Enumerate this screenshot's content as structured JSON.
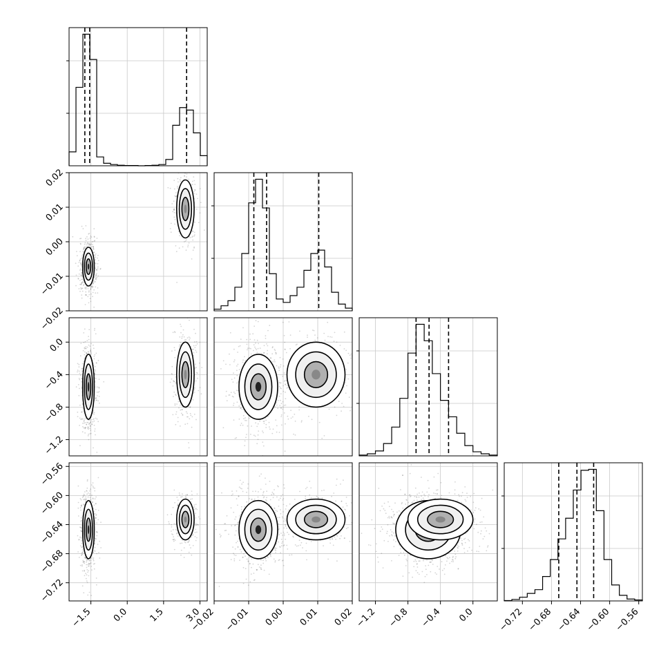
{
  "chart_data": {
    "type": "corner",
    "title": "",
    "parameters": [
      {
        "index": 0,
        "range": [
          -2.4,
          3.3
        ],
        "ticks": [
          -1.5,
          0.0,
          1.5,
          3.0
        ],
        "tick_labels": [
          "−1.5",
          "0.0",
          "1.5",
          "3.0"
        ],
        "quantiles": [
          -1.75,
          -1.55,
          2.45
        ],
        "show_xticks": true,
        "show_yticks": false
      },
      {
        "index": 1,
        "range": [
          -0.02,
          0.02
        ],
        "ticks": [
          -0.02,
          -0.01,
          0.0,
          0.01,
          0.02
        ],
        "tick_labels": [
          "−0.02",
          "−0.01",
          "0.00",
          "0.01",
          "0.02"
        ],
        "quantiles": [
          -0.0085,
          -0.0048,
          0.0103
        ],
        "show_xticks": true,
        "show_yticks": true
      },
      {
        "index": 2,
        "range": [
          -1.4,
          0.3
        ],
        "ticks": [
          -1.2,
          -0.8,
          -0.4,
          0.0
        ],
        "tick_labels": [
          "−1.2",
          "−0.8",
          "−0.4",
          "0.0"
        ],
        "quantiles": [
          -0.7,
          -0.54,
          -0.3
        ],
        "show_xticks": true,
        "show_yticks": true
      },
      {
        "index": 3,
        "range": [
          -0.745,
          -0.555
        ],
        "ticks": [
          -0.72,
          -0.68,
          -0.64,
          -0.6,
          -0.56
        ],
        "tick_labels": [
          "−0.72",
          "−0.68",
          "−0.64",
          "−0.60",
          "−0.56"
        ],
        "quantiles": [
          -0.67,
          -0.645,
          -0.622
        ],
        "show_xticks": true,
        "show_yticks": true
      }
    ],
    "histograms": [
      {
        "param": 0,
        "values": [
          0.55,
          3.1,
          5.2,
          4.2,
          0.35,
          0.1,
          0.05,
          0.02,
          0.01,
          0.01,
          0.0,
          0.01,
          0.02,
          0.05,
          0.25,
          1.6,
          2.3,
          2.2,
          1.3,
          0.4
        ]
      },
      {
        "param": 1,
        "values": [
          0.05,
          0.15,
          0.3,
          0.7,
          1.7,
          3.2,
          3.9,
          3.05,
          1.1,
          0.35,
          0.25,
          0.45,
          0.7,
          1.2,
          1.7,
          1.8,
          1.3,
          0.55,
          0.2,
          0.08
        ]
      },
      {
        "param": 2,
        "values": [
          0.02,
          0.05,
          0.12,
          0.3,
          0.7,
          1.4,
          2.5,
          3.2,
          2.8,
          2.0,
          1.35,
          0.95,
          0.55,
          0.25,
          0.1,
          0.05,
          0.02
        ]
      },
      {
        "param": 3,
        "values": [
          0.02,
          0.08,
          0.2,
          0.4,
          0.6,
          1.3,
          2.2,
          3.3,
          4.4,
          5.9,
          6.95,
          7.0,
          4.8,
          2.2,
          0.85,
          0.3,
          0.1,
          0.05
        ]
      }
    ],
    "modes": [
      {
        "weight": 0.66,
        "mean": [
          -1.6,
          -0.0072,
          -0.55,
          -0.647
        ],
        "sd": [
          0.12,
          0.0028,
          0.2,
          0.02
        ]
      },
      {
        "weight": 0.34,
        "mean": [
          2.4,
          0.0095,
          -0.4,
          -0.633
        ],
        "sd": [
          0.18,
          0.0042,
          0.2,
          0.014
        ]
      }
    ],
    "grid": true
  }
}
